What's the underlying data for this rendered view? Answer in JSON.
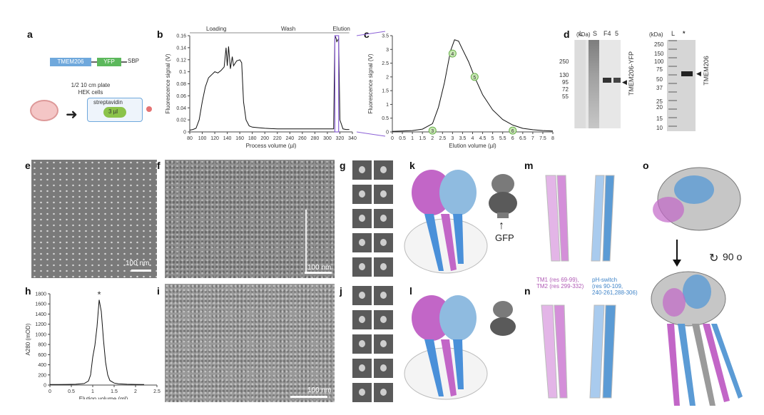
{
  "panels": {
    "a": "a",
    "b": "b",
    "c": "c",
    "d": "d",
    "e": "e",
    "f": "f",
    "g": "g",
    "h": "h",
    "i": "i",
    "j": "j",
    "k": "k",
    "l": "l",
    "m": "m",
    "n": "n",
    "o": "o"
  },
  "panel_a": {
    "construct": [
      "TMEM206",
      "YFP",
      "SBP"
    ],
    "cells_line1": "1/2 10 cm plate",
    "cells_line2": "HEK cells",
    "column_label": "streptavidin",
    "volume": "3 µl",
    "colors": {
      "tmem": "#6fa8dc",
      "yfp": "#5cb85c"
    }
  },
  "panel_b": {
    "phases": [
      "Loading",
      "Wash",
      "Elution"
    ],
    "ylabel": "Fluorescence signal (V)",
    "xlabel": "Process volume (µl)",
    "xticks": [
      "80",
      "100",
      "120",
      "140",
      "160",
      "180",
      "200",
      "220",
      "240",
      "260",
      "280",
      "300",
      "320",
      "340"
    ],
    "yticks": [
      "0",
      "0.02",
      "0.04",
      "0.06",
      "0.08",
      "0.1",
      "0.12",
      "0.14",
      "0.16"
    ]
  },
  "panel_c": {
    "ylabel": "Fluorescence signal (V)",
    "xlabel": "Elution volume (µl)",
    "xticks": [
      "0",
      "0.5",
      "1",
      "1.5",
      "2",
      "2.5",
      "3",
      "3.5",
      "4",
      "4.5",
      "5",
      "5.5",
      "6",
      "6.5",
      "7",
      "7.5",
      "8"
    ],
    "yticks": [
      "0",
      "0.5",
      "1",
      "1.5",
      "2",
      "2.5",
      "3",
      "3.5"
    ],
    "fractions": [
      "3",
      "4",
      "5",
      "6"
    ]
  },
  "panel_d": {
    "unit": "(kDa)",
    "lanes1": [
      "L",
      "S",
      "F4",
      "5"
    ],
    "markers1": [
      "250",
      "130",
      "95",
      "72",
      "55"
    ],
    "label1": "TMEM206-YFP",
    "lanes2": [
      "L",
      "*"
    ],
    "markers2": [
      "250",
      "150",
      "100",
      "75",
      "50",
      "37",
      "25",
      "20",
      "15",
      "10"
    ],
    "label2": "TMEM206"
  },
  "panel_e": {
    "scale": "100 nm"
  },
  "panel_f": {
    "scale": "100 nm"
  },
  "panel_h": {
    "ylabel": "A280 (mOD)",
    "xlabel": "Elution volume (ml)",
    "xticks": [
      "0",
      "0.5",
      "1",
      "1.5",
      "2",
      "2.5"
    ],
    "yticks": [
      "0",
      "200",
      "400",
      "600",
      "800",
      "1000",
      "1200",
      "1400",
      "1600",
      "1800"
    ],
    "peak_marker": "*"
  },
  "panel_i": {
    "scale": "100 nm"
  },
  "panel_k": {
    "gfp": "GFP"
  },
  "panel_n": {
    "legend_tm": "TM1 (res 69-99),\nTM2 (res 299-332)",
    "legend_ph": "pH-switch\n(res 90-109,\n240-261,288-306)"
  },
  "panel_o": {
    "rotation": "90 o"
  },
  "chart_data": [
    {
      "type": "line",
      "title": "",
      "xlabel": "Process volume (µl)",
      "ylabel": "Fluorescence signal (V)",
      "xlim": [
        80,
        340
      ],
      "ylim": [
        0,
        0.16
      ],
      "annotations": [
        "Loading",
        "Wash",
        "Elution"
      ],
      "series": [
        {
          "x": [
            80,
            85,
            90,
            95,
            100,
            105,
            110,
            115,
            120,
            125,
            130,
            135,
            138,
            140,
            142,
            145,
            148,
            150,
            155,
            160,
            163,
            166,
            170,
            175,
            180,
            190,
            200,
            220,
            240,
            260,
            280,
            300,
            310,
            312,
            313,
            314,
            315,
            318,
            320,
            325,
            330,
            335
          ],
          "y": [
            0.003,
            0.004,
            0.006,
            0.02,
            0.05,
            0.075,
            0.09,
            0.095,
            0.1,
            0.098,
            0.102,
            0.108,
            0.14,
            0.11,
            0.142,
            0.105,
            0.125,
            0.11,
            0.118,
            0.12,
            0.115,
            0.05,
            0.02,
            0.01,
            0.008,
            0.007,
            0.006,
            0.005,
            0.005,
            0.005,
            0.005,
            0.005,
            0.005,
            0.155,
            0.158,
            0.155,
            0.15,
            0.155,
            0.02,
            0.005,
            0.004,
            0.004
          ]
        }
      ]
    },
    {
      "type": "line",
      "title": "",
      "xlabel": "Elution volume (µl)",
      "ylabel": "Fluorescence signal (V)",
      "xlim": [
        0,
        8
      ],
      "ylim": [
        0,
        3.5
      ],
      "annotations": [
        "3",
        "4",
        "5",
        "6"
      ],
      "series": [
        {
          "x": [
            0,
            0.5,
            1,
            1.5,
            2,
            2.3,
            2.6,
            2.9,
            3.1,
            3.3,
            3.5,
            3.8,
            4.1,
            4.5,
            5,
            5.5,
            6,
            6.5,
            7,
            7.5,
            8
          ],
          "y": [
            0.02,
            0.03,
            0.05,
            0.1,
            0.3,
            0.9,
            1.8,
            2.95,
            3.35,
            3.3,
            3.0,
            2.55,
            2.0,
            1.35,
            0.8,
            0.45,
            0.25,
            0.13,
            0.08,
            0.05,
            0.03
          ]
        }
      ],
      "points": [
        {
          "label": "3",
          "x": 2.0,
          "y": 0.05
        },
        {
          "label": "4",
          "x": 3.0,
          "y": 2.85
        },
        {
          "label": "5",
          "x": 4.1,
          "y": 2.0
        },
        {
          "label": "6",
          "x": 6.0,
          "y": 0.05
        }
      ]
    },
    {
      "type": "line",
      "title": "",
      "xlabel": "Elution volume (ml)",
      "ylabel": "A280 (mOD)",
      "xlim": [
        0,
        2.5
      ],
      "ylim": [
        0,
        1800
      ],
      "annotations": [
        "*"
      ],
      "series": [
        {
          "x": [
            0,
            0.2,
            0.4,
            0.6,
            0.8,
            0.9,
            0.95,
            1.0,
            1.05,
            1.1,
            1.15,
            1.2,
            1.25,
            1.3,
            1.35,
            1.4,
            1.5,
            1.6,
            1.8,
            2.0,
            2.2
          ],
          "y": [
            10,
            10,
            12,
            15,
            30,
            80,
            200,
            550,
            780,
            1150,
            1680,
            1450,
            900,
            450,
            200,
            90,
            40,
            25,
            15,
            12,
            10
          ]
        }
      ]
    }
  ]
}
